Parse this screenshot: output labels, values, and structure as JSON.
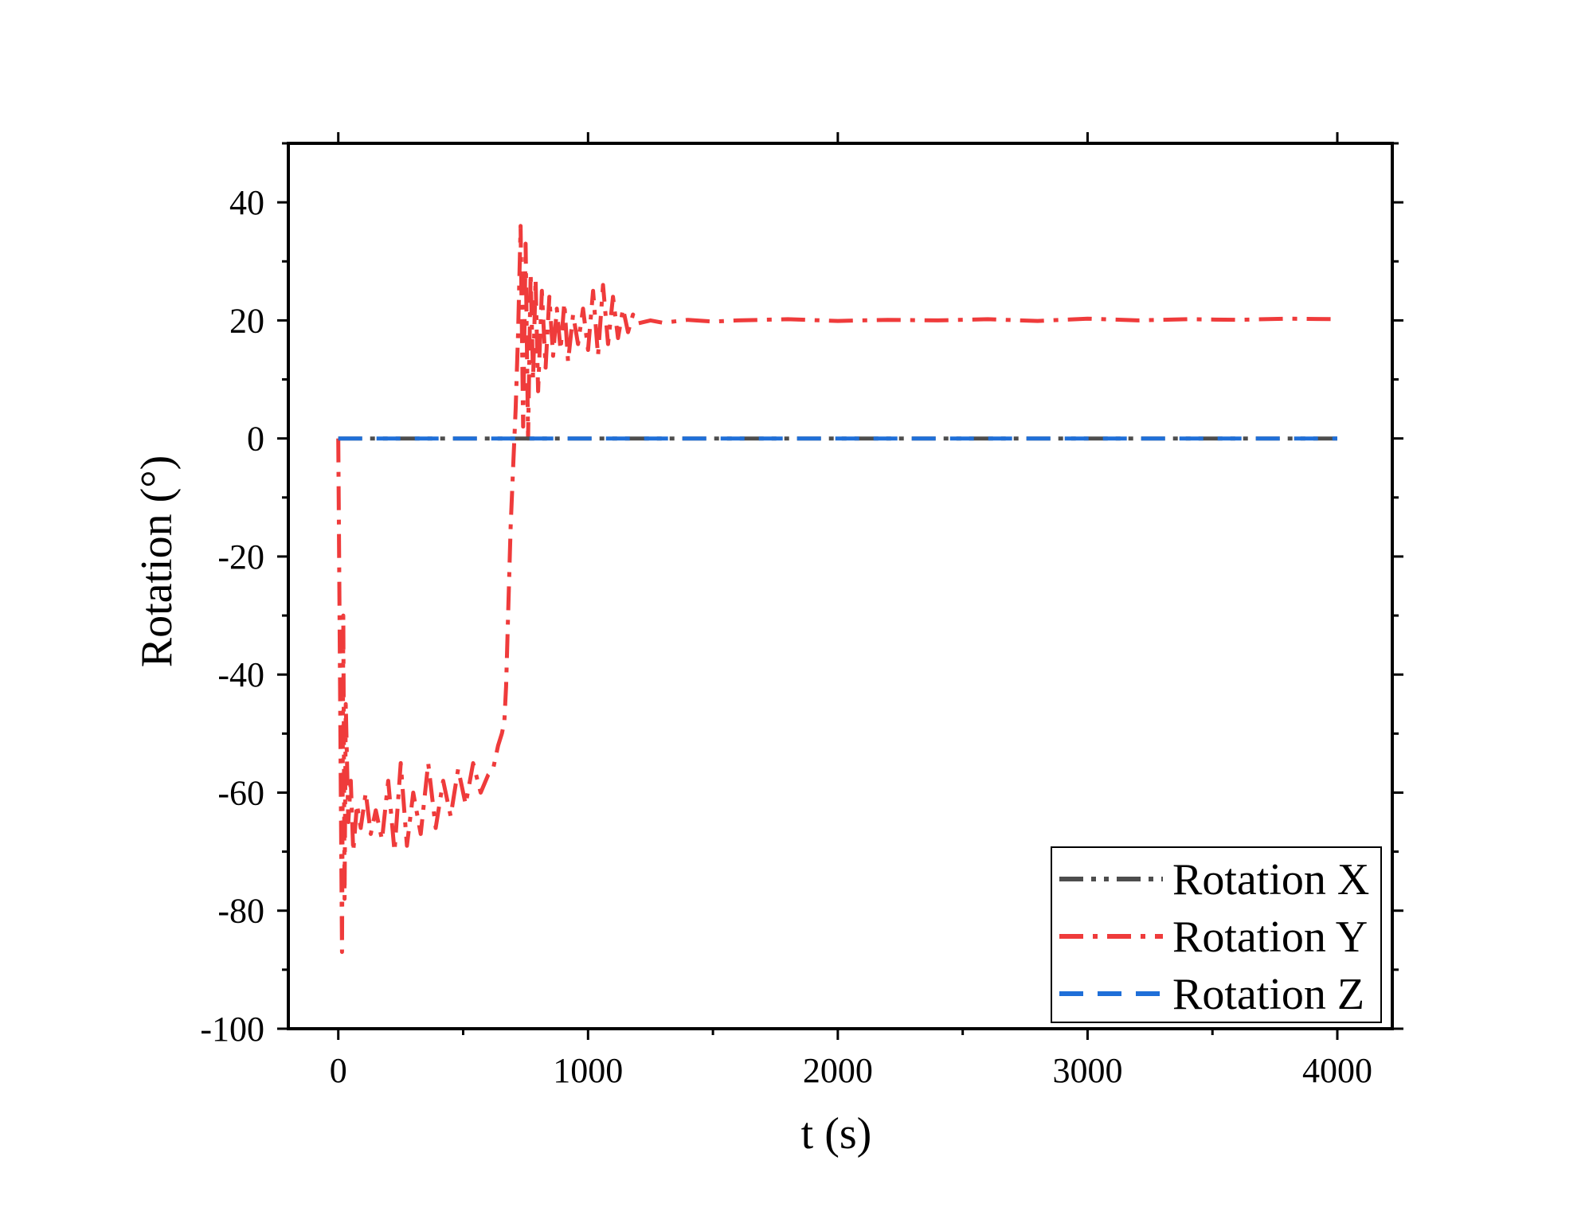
{
  "chart_data": {
    "type": "line",
    "xlabel": "t (s)",
    "ylabel": "Rotation (°)",
    "xlim": [
      -200,
      4220
    ],
    "ylim": [
      -100,
      50
    ],
    "xticks": [
      0,
      1000,
      2000,
      3000,
      4000
    ],
    "xtick_labels": [
      "0",
      "1000",
      "2000",
      "3000",
      "4000"
    ],
    "yticks": [
      -100,
      -80,
      -60,
      -40,
      -20,
      0,
      20,
      40
    ],
    "ytick_labels": [
      "-100",
      "-80",
      "-60",
      "-40",
      "-20",
      "0",
      "20",
      "40"
    ],
    "grid": false,
    "legend_position": "bottom-right",
    "series": [
      {
        "name": "Rotation X",
        "color": "#4d4d4d",
        "dash": "dash-dot-dot",
        "x": [
          0,
          4000
        ],
        "y": [
          0,
          0
        ]
      },
      {
        "name": "Rotation Y",
        "color": "#ef3b3b",
        "dash": "dash-dot",
        "x": [
          0,
          10,
          15,
          20,
          25,
          30,
          40,
          50,
          60,
          75,
          90,
          110,
          130,
          150,
          175,
          200,
          225,
          250,
          275,
          300,
          330,
          360,
          390,
          420,
          450,
          480,
          510,
          540,
          570,
          600,
          620,
          640,
          655,
          665,
          672,
          680,
          690,
          700,
          710,
          720,
          730,
          740,
          750,
          760,
          770,
          780,
          790,
          800,
          815,
          830,
          845,
          860,
          875,
          890,
          905,
          920,
          940,
          960,
          980,
          1000,
          1020,
          1040,
          1060,
          1080,
          1100,
          1120,
          1140,
          1160,
          1180,
          1200,
          1250,
          1300,
          1400,
          1500,
          1600,
          1800,
          2000,
          2200,
          2400,
          2600,
          2800,
          3000,
          3200,
          3400,
          3600,
          3800,
          4000
        ],
        "y": [
          0,
          -60,
          -87,
          -30,
          -78,
          -45,
          -65,
          -58,
          -70,
          -62,
          -66,
          -60,
          -67,
          -63,
          -68,
          -58,
          -70,
          -55,
          -69,
          -60,
          -67,
          -55,
          -66,
          -58,
          -64,
          -56,
          -62,
          -55,
          -60,
          -57,
          -56,
          -52,
          -50,
          -48,
          -42,
          -30,
          -15,
          -5,
          5,
          18,
          36,
          2,
          33,
          0,
          28,
          10,
          27,
          8,
          25,
          12,
          24,
          14,
          22,
          15,
          23,
          13,
          21,
          16,
          22,
          15,
          25,
          14,
          26,
          16,
          24,
          17,
          22,
          18,
          21,
          19.5,
          20,
          19.6,
          20.1,
          19.8,
          20,
          20.2,
          19.9,
          20.1,
          20,
          20.2,
          19.9,
          20.3,
          20,
          20.2,
          20.1,
          20.3,
          20.2
        ]
      },
      {
        "name": "Rotation Z",
        "color": "#1f6fd8",
        "dash": "dash",
        "x": [
          0,
          4000
        ],
        "y": [
          0,
          0
        ]
      }
    ]
  }
}
